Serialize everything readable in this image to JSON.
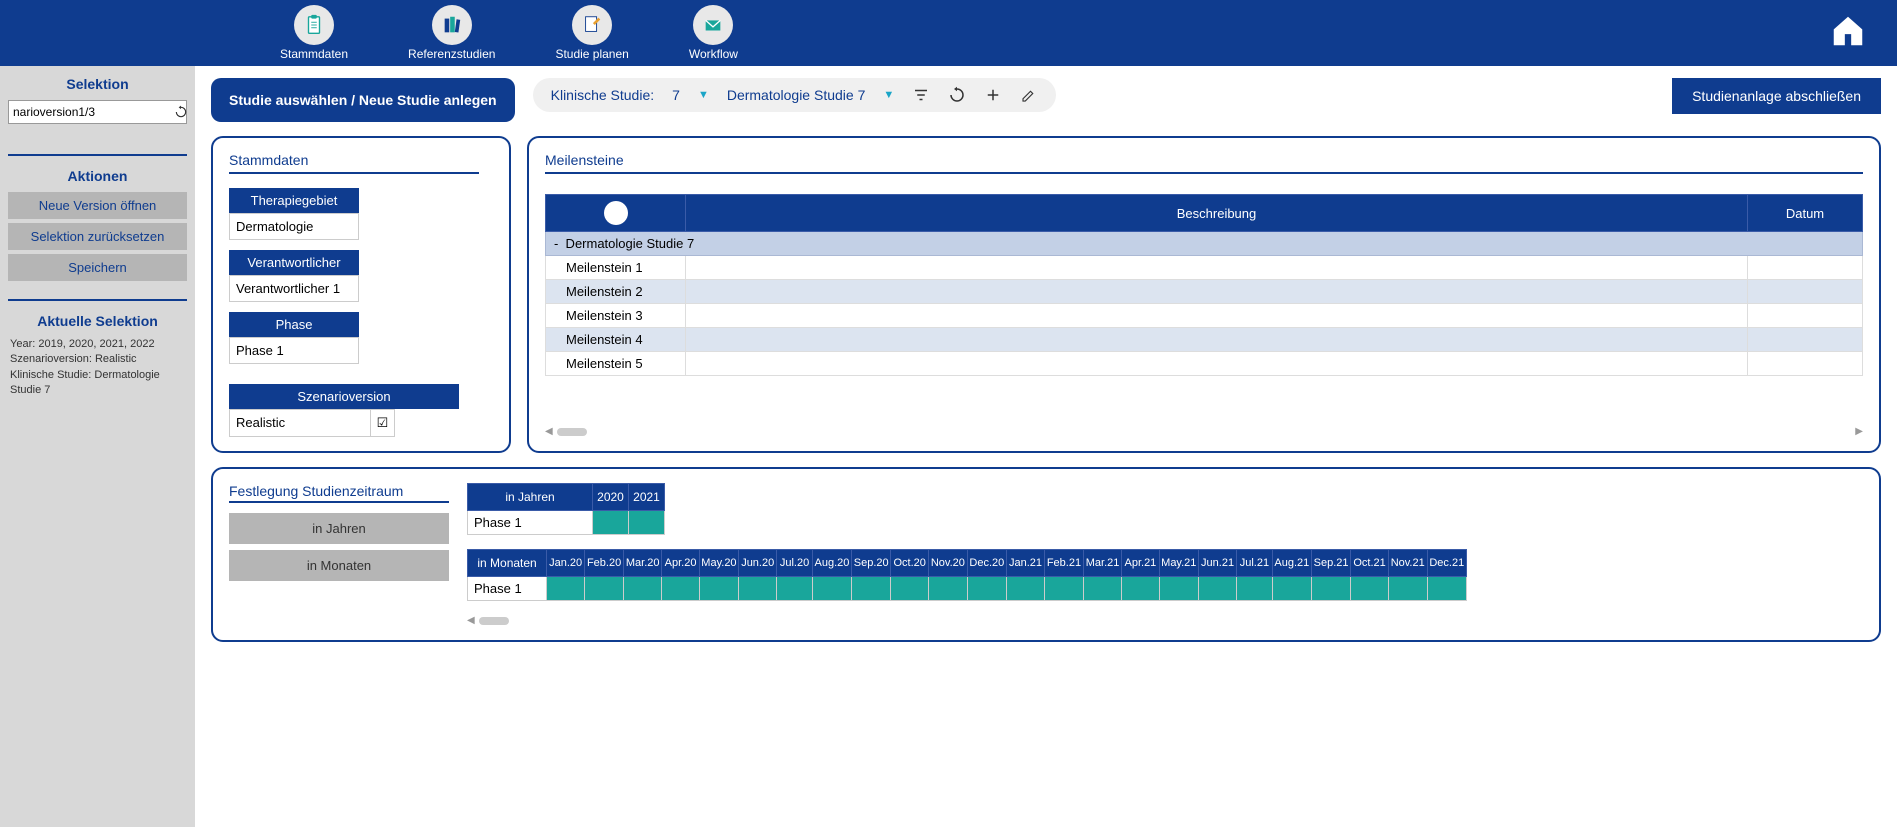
{
  "colors": {
    "primary": "#0f3c8f",
    "teal": "#19a69b",
    "gray_btn": "#b5b5b5",
    "sidebar_bg": "#d8d8d8"
  },
  "topnav": {
    "items": [
      {
        "label": "Stammdaten",
        "icon": "clipboard"
      },
      {
        "label": "Referenzstudien",
        "icon": "books"
      },
      {
        "label": "Studie planen",
        "icon": "edit-doc"
      },
      {
        "label": "Workflow",
        "icon": "mail"
      }
    ]
  },
  "sidebar": {
    "selektion_header": "Selektion",
    "input_value": "narioversion1/3",
    "aktionen_header": "Aktionen",
    "actions": [
      {
        "label": "Neue Version öffnen"
      },
      {
        "label": "Selektion zurücksetzen"
      },
      {
        "label": "Speichern"
      }
    ],
    "aktuelle_header": "Aktuelle Selektion",
    "info_lines": [
      "Year: 2019, 2020, 2021, 2022",
      "Szenarioversion: Realistic",
      "Klinische Studie: Dermatologie Studie 7"
    ]
  },
  "toolbar": {
    "studie_btn": "Studie auswählen / Neue Studie anlegen",
    "pill": {
      "label1": "Klinische Studie:",
      "val1": "7",
      "val2": "Dermatologie Studie 7"
    },
    "close_btn": "Studienanlage abschließen"
  },
  "stammdaten": {
    "title": "Stammdaten",
    "fields": [
      {
        "label": "Therapiegebiet",
        "value": "Dermatologie"
      },
      {
        "label": "Verantwortlicher",
        "value": "Verantwortlicher 1"
      },
      {
        "label": "Phase",
        "value": "Phase 1"
      }
    ],
    "scenario": {
      "header": "Szenarioversion",
      "value": "Realistic",
      "checked": true
    }
  },
  "milestones": {
    "title": "Meilensteine",
    "headers": {
      "beschreibung": "Beschreibung",
      "datum": "Datum"
    },
    "group": "Dermatologie Studie 7",
    "rows": [
      {
        "name": "Meilenstein 1"
      },
      {
        "name": "Meilenstein 2"
      },
      {
        "name": "Meilenstein 3"
      },
      {
        "name": "Meilenstein 4"
      },
      {
        "name": "Meilenstein 5"
      }
    ]
  },
  "timeline": {
    "title": "Festlegung Studienzeitraum",
    "btn_years": "in Jahren",
    "btn_months": "in Monaten",
    "years_table": {
      "header": "in Jahren",
      "row_label": "Phase 1",
      "cols": [
        "2020",
        "2021"
      ],
      "filled": [
        true,
        true
      ]
    },
    "months_table": {
      "header": "in Monaten",
      "row_label": "Phase 1",
      "cols": [
        "Jan.20",
        "Feb.20",
        "Mar.20",
        "Apr.20",
        "May.20",
        "Jun.20",
        "Jul.20",
        "Aug.20",
        "Sep.20",
        "Oct.20",
        "Nov.20",
        "Dec.20",
        "Jan.21",
        "Feb.21",
        "Mar.21",
        "Apr.21",
        "May.21",
        "Jun.21",
        "Jul.21",
        "Aug.21",
        "Sep.21",
        "Oct.21",
        "Nov.21",
        "Dec.21"
      ]
    }
  }
}
